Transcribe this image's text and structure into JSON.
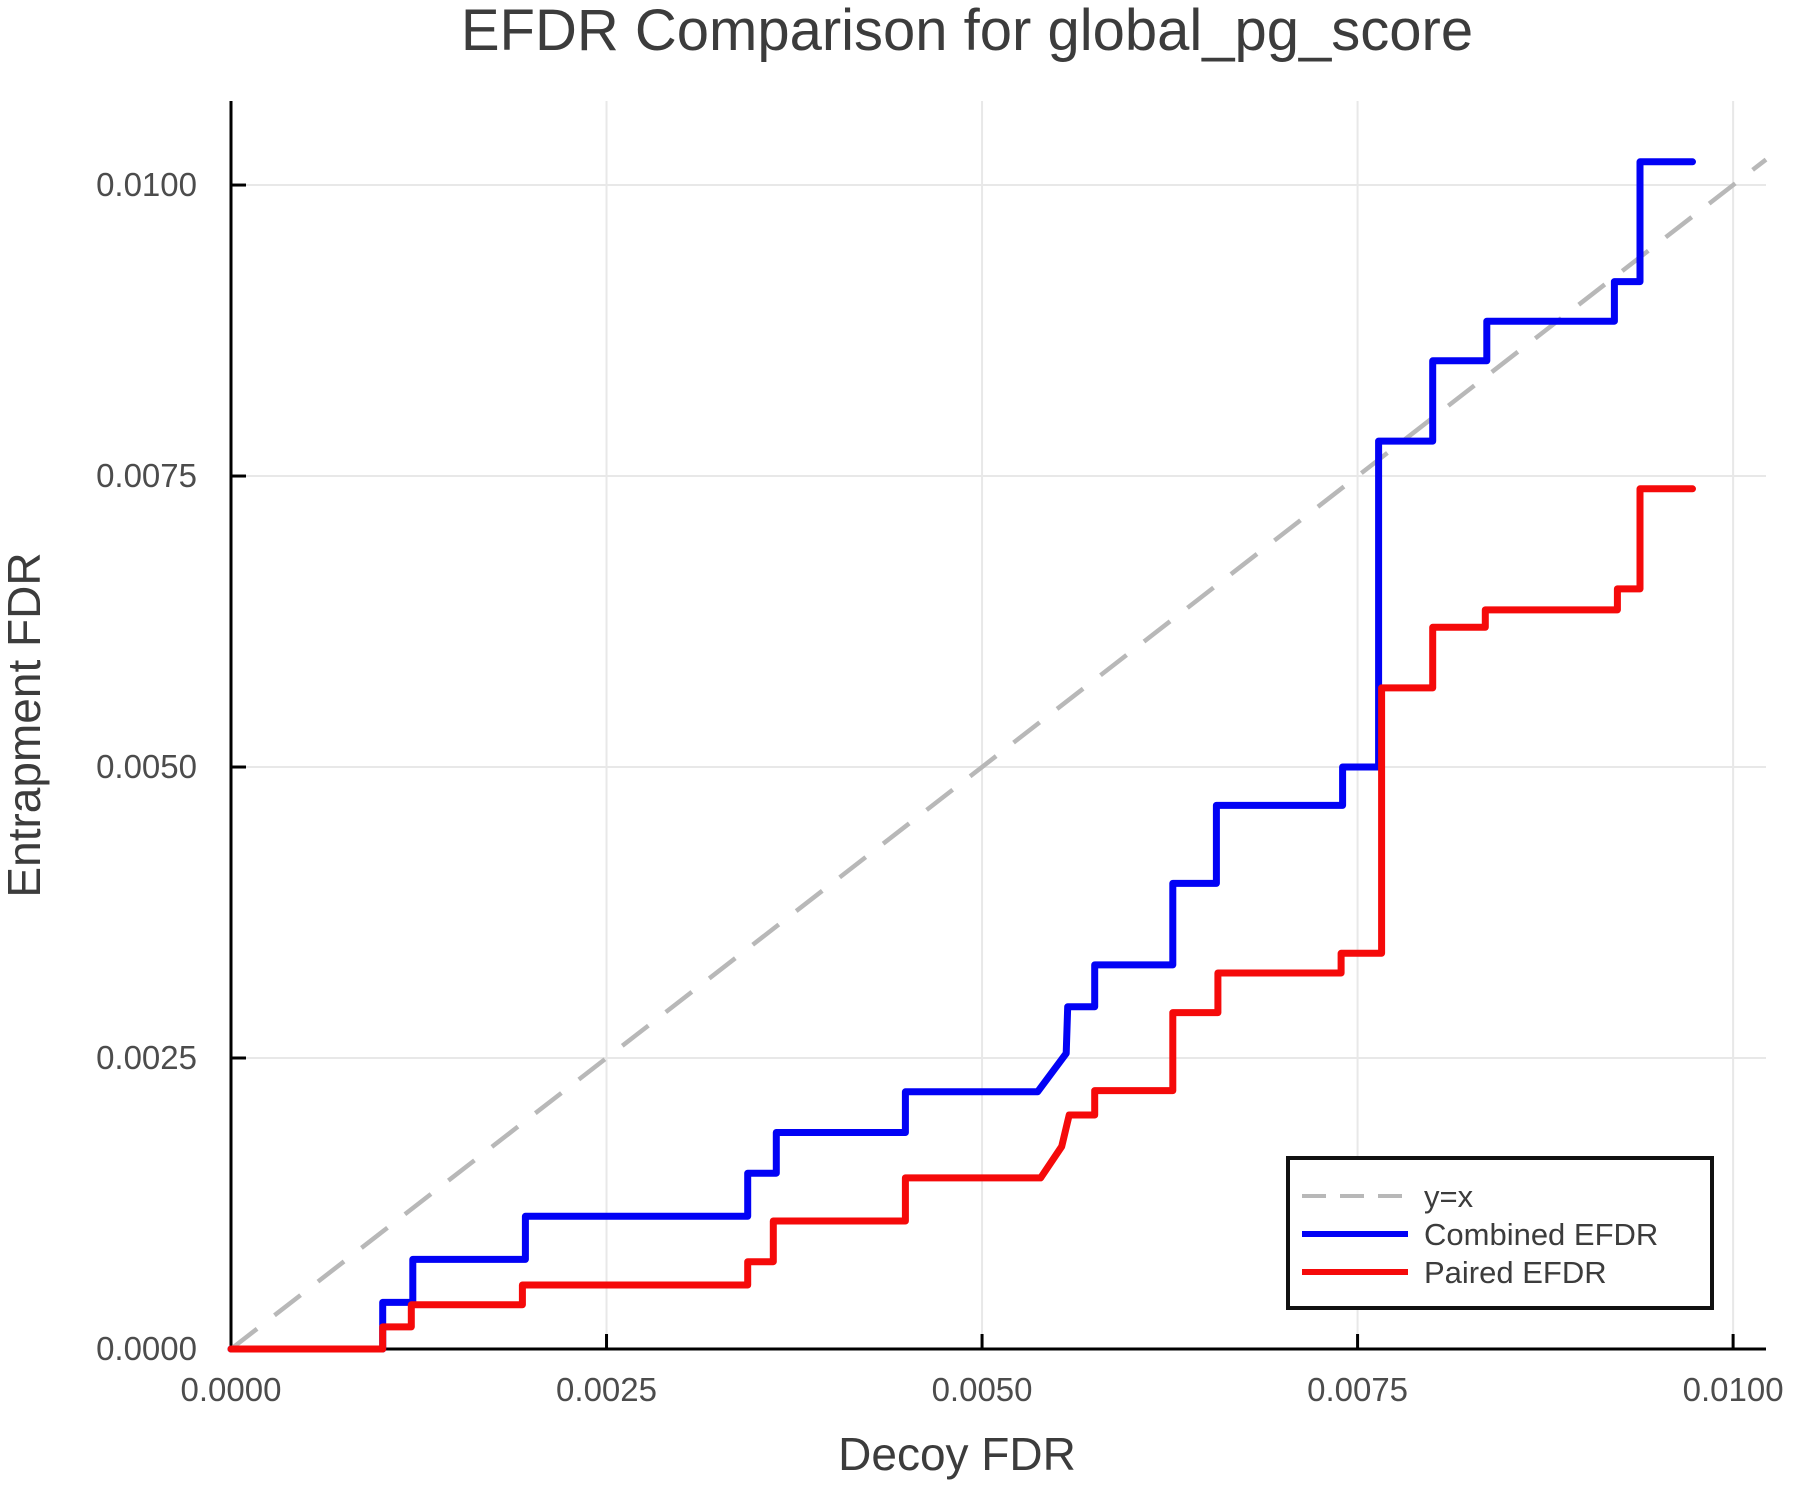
{
  "title": "EFDR Comparison for global_pg_score",
  "x_axis": {
    "label": "Decoy FDR",
    "tick_labels": [
      "0.0000",
      "0.0025",
      "0.0050",
      "0.0075",
      "0.0100"
    ],
    "tick_values": [
      0,
      0.0025,
      0.005,
      0.0075,
      0.01
    ]
  },
  "y_axis": {
    "label": "Entrapment FDR",
    "tick_labels": [
      "0.0000",
      "0.0025",
      "0.0050",
      "0.0075",
      "0.0100"
    ],
    "tick_values": [
      0,
      0.0025,
      0.005,
      0.0075,
      0.01
    ]
  },
  "legend": [
    {
      "label": "y=x",
      "color": "#b8b8b8",
      "dashed": true
    },
    {
      "label": "Combined EFDR",
      "color": "#0202f5",
      "dashed": false
    },
    {
      "label": "Paired EFDR",
      "color": "#f50a0a",
      "dashed": false
    }
  ],
  "colors": {
    "grid": "#e8e8e8",
    "spine": "#000000",
    "reference": "#b8b8b8",
    "combined": "#0202f5",
    "paired": "#f50a0a",
    "legend_border": "#111111",
    "background": "#ffffff"
  },
  "chart_data": {
    "type": "line",
    "subtype": "step-function-comparison",
    "title": "EFDR Comparison for global_pg_score",
    "xlabel": "Decoy FDR",
    "ylabel": "Entrapment FDR",
    "xlim": [
      0,
      0.010219
    ],
    "ylim": [
      0,
      0.010722
    ],
    "grid": true,
    "legend_position": "lower right",
    "reference_line": {
      "name": "y=x",
      "from": [
        0,
        0
      ],
      "to": [
        0.010219,
        0.010219
      ],
      "style": "dashed",
      "color": "#b8b8b8"
    },
    "series": [
      {
        "name": "Combined EFDR",
        "color": "#0202f5",
        "points": [
          [
            0,
            0
          ],
          [
            0.00101,
            0
          ],
          [
            0.00101,
            0.0004
          ],
          [
            0.00121,
            0.0004
          ],
          [
            0.00121,
            0.00077
          ],
          [
            0.00196,
            0.00077
          ],
          [
            0.00196,
            0.00114
          ],
          [
            0.00344,
            0.00114
          ],
          [
            0.00344,
            0.00151
          ],
          [
            0.00363,
            0.00151
          ],
          [
            0.00363,
            0.00186
          ],
          [
            0.00449,
            0.00186
          ],
          [
            0.00449,
            0.00221
          ],
          [
            0.00537,
            0.00221
          ],
          [
            0.00556,
            0.00254
          ],
          [
            0.00557,
            0.00294
          ],
          [
            0.00575,
            0.00294
          ],
          [
            0.00575,
            0.0033
          ],
          [
            0.00627,
            0.0033
          ],
          [
            0.00627,
            0.004
          ],
          [
            0.00656,
            0.004
          ],
          [
            0.00656,
            0.00467
          ],
          [
            0.0074,
            0.00467
          ],
          [
            0.0074,
            0.005
          ],
          [
            0.00764,
            0.005
          ],
          [
            0.00764,
            0.0078
          ],
          [
            0.008,
            0.0078
          ],
          [
            0.008,
            0.00849
          ],
          [
            0.00836,
            0.00849
          ],
          [
            0.00836,
            0.00883
          ],
          [
            0.00921,
            0.00883
          ],
          [
            0.00921,
            0.00917
          ],
          [
            0.00938,
            0.00917
          ],
          [
            0.00938,
            0.0102
          ],
          [
            0.00973,
            0.0102
          ]
        ]
      },
      {
        "name": "Paired EFDR",
        "color": "#f50a0a",
        "points": [
          [
            0,
            0
          ],
          [
            0.00101,
            0
          ],
          [
            0.00101,
            0.00019
          ],
          [
            0.0012,
            0.00019
          ],
          [
            0.0012,
            0.00038
          ],
          [
            0.00194,
            0.00038
          ],
          [
            0.00194,
            0.00055
          ],
          [
            0.00344,
            0.00055
          ],
          [
            0.00344,
            0.00075
          ],
          [
            0.00361,
            0.00075
          ],
          [
            0.00361,
            0.0011
          ],
          [
            0.00449,
            0.0011
          ],
          [
            0.00449,
            0.00147
          ],
          [
            0.00539,
            0.00147
          ],
          [
            0.00553,
            0.00174
          ],
          [
            0.00558,
            0.00201
          ],
          [
            0.00575,
            0.00201
          ],
          [
            0.00575,
            0.00222
          ],
          [
            0.00627,
            0.00222
          ],
          [
            0.00627,
            0.00289
          ],
          [
            0.00657,
            0.00289
          ],
          [
            0.00657,
            0.00323
          ],
          [
            0.00739,
            0.00323
          ],
          [
            0.00739,
            0.0034
          ],
          [
            0.00766,
            0.0034
          ],
          [
            0.00766,
            0.00568
          ],
          [
            0.008,
            0.00568
          ],
          [
            0.008,
            0.0062
          ],
          [
            0.00835,
            0.0062
          ],
          [
            0.00835,
            0.00635
          ],
          [
            0.00923,
            0.00635
          ],
          [
            0.00923,
            0.00653
          ],
          [
            0.00938,
            0.00653
          ],
          [
            0.00938,
            0.00739
          ],
          [
            0.00973,
            0.00739
          ]
        ]
      }
    ]
  }
}
